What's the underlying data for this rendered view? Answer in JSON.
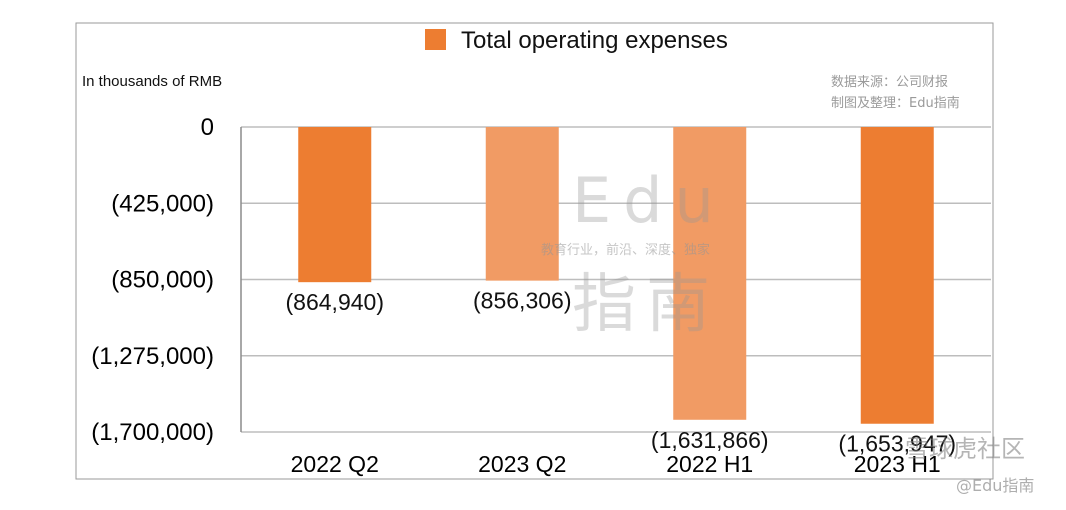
{
  "chart_data": {
    "type": "bar",
    "categories": [
      "2022 Q2",
      "2023 Q2",
      "2022 H1",
      "2023 H1"
    ],
    "series": [
      {
        "name": "Total operating expenses",
        "values": [
          -864940,
          -856306,
          -1631866,
          -1653947
        ],
        "labels": [
          "(864,940)",
          "(856,306)",
          "(1,631,866)",
          "(1,653,947)"
        ],
        "colors": [
          "#ED7D31",
          "#F19B64",
          "#F19B64",
          "#ED7D31"
        ]
      }
    ],
    "ylim": [
      -1700000,
      0
    ],
    "yticks": [
      0,
      -425000,
      -850000,
      -1275000,
      -1700000
    ],
    "ytick_labels": [
      "0",
      "(425,000)",
      "(850,000)",
      "(1,275,000)",
      "(1,700,000)"
    ],
    "unit_label": "In thousands of RMB",
    "legend": {
      "label": "Total operating expenses",
      "color": "#ED7D31",
      "position": "top-center"
    },
    "grid": true,
    "source_lines": [
      "数据来源：公司财报",
      "制图及整理：Edu指南"
    ]
  },
  "watermark": {
    "big": "Edu",
    "tagline": "教育行业，前沿、深度、独家",
    "cn": "指南",
    "corner_main": "雪球虎社区",
    "corner_sub": "@Edu指南"
  }
}
